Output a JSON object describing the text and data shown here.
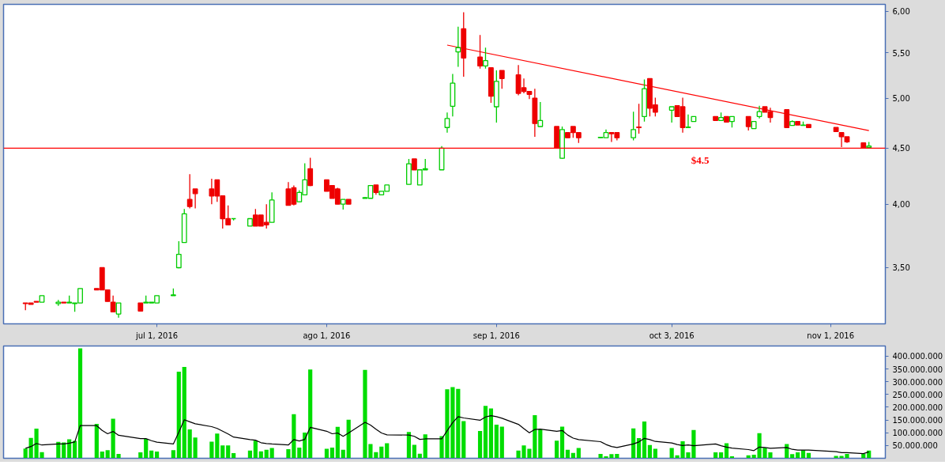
{
  "chart_data": [
    {
      "type": "candlestick",
      "log": true,
      "x": [
        "2016-06-07",
        "2016-06-08",
        "2016-06-09",
        "2016-06-10",
        "2016-06-13",
        "2016-06-14",
        "2016-06-15",
        "2016-06-16",
        "2016-06-17",
        "2016-06-20",
        "2016-06-21",
        "2016-06-22",
        "2016-06-23",
        "2016-06-24",
        "2016-06-28",
        "2016-06-29",
        "2016-06-30",
        "2016-07-01",
        "2016-07-04",
        "2016-07-05",
        "2016-07-06",
        "2016-07-07",
        "2016-07-08",
        "2016-07-11",
        "2016-07-12",
        "2016-07-13",
        "2016-07-14",
        "2016-07-15",
        "2016-07-18",
        "2016-07-19",
        "2016-07-20",
        "2016-07-21",
        "2016-07-22",
        "2016-07-25",
        "2016-07-26",
        "2016-07-27",
        "2016-07-28",
        "2016-07-29",
        "2016-08-01",
        "2016-08-02",
        "2016-08-03",
        "2016-08-04",
        "2016-08-05",
        "2016-08-08",
        "2016-08-09",
        "2016-08-10",
        "2016-08-11",
        "2016-08-12",
        "2016-08-16",
        "2016-08-17",
        "2016-08-18",
        "2016-08-19",
        "2016-08-22",
        "2016-08-23",
        "2016-08-24",
        "2016-08-25",
        "2016-08-26",
        "2016-08-29",
        "2016-08-30",
        "2016-08-31",
        "2016-09-01",
        "2016-09-02",
        "2016-09-05",
        "2016-09-06",
        "2016-09-07",
        "2016-09-08",
        "2016-09-09",
        "2016-09-12",
        "2016-09-13",
        "2016-09-14",
        "2016-09-15",
        "2016-09-16",
        "2016-09-20",
        "2016-09-21",
        "2016-09-22",
        "2016-09-23",
        "2016-09-26",
        "2016-09-27",
        "2016-09-28",
        "2016-09-29",
        "2016-09-30",
        "2016-10-03",
        "2016-10-04",
        "2016-10-05",
        "2016-10-06",
        "2016-10-07",
        "2016-10-11",
        "2016-10-12",
        "2016-10-13",
        "2016-10-14",
        "2016-10-17",
        "2016-10-18",
        "2016-10-19",
        "2016-10-20",
        "2016-10-21",
        "2016-10-24",
        "2016-10-25",
        "2016-10-26",
        "2016-10-27",
        "2016-10-28",
        "2016-11-02",
        "2016-11-03",
        "2016-11-04",
        "2016-11-07",
        "2016-11-08"
      ],
      "ohlc": [
        [
          3.25,
          3.25,
          3.2,
          3.245
        ],
        [
          3.25,
          3.25,
          3.24,
          3.24
        ],
        [
          3.26,
          3.26,
          3.255,
          3.255
        ],
        [
          3.255,
          3.3,
          3.255,
          3.3
        ],
        [
          3.245,
          3.27,
          3.23,
          3.255
        ],
        [
          3.255,
          3.255,
          3.25,
          3.25
        ],
        [
          3.25,
          3.3,
          3.25,
          3.255
        ],
        [
          3.245,
          3.25,
          3.19,
          3.25
        ],
        [
          3.25,
          3.35,
          3.25,
          3.35
        ],
        [
          3.35,
          3.35,
          3.34,
          3.34
        ],
        [
          3.5,
          3.5,
          3.34,
          3.34
        ],
        [
          3.34,
          3.34,
          3.26,
          3.26
        ],
        [
          3.255,
          3.3,
          3.19,
          3.19
        ],
        [
          3.175,
          3.25,
          3.15,
          3.25
        ],
        [
          3.25,
          3.25,
          3.195,
          3.195
        ],
        [
          3.25,
          3.3,
          3.25,
          3.255
        ],
        [
          3.25,
          3.255,
          3.25,
          3.255
        ],
        [
          3.25,
          3.3,
          3.25,
          3.3
        ],
        [
          3.3,
          3.35,
          3.3,
          3.305
        ],
        [
          3.5,
          3.7,
          3.495,
          3.6
        ],
        [
          3.69,
          3.96,
          3.69,
          3.92
        ],
        [
          4.04,
          4.26,
          3.965,
          3.98
        ],
        [
          4.13,
          4.13,
          3.965,
          4.09
        ],
        [
          4.13,
          4.22,
          4.0,
          4.07
        ],
        [
          4.21,
          4.21,
          4.02,
          4.07
        ],
        [
          4.07,
          4.07,
          3.8,
          3.88
        ],
        [
          3.88,
          3.99,
          3.83,
          3.83
        ],
        [
          3.88,
          3.88,
          3.865,
          3.88
        ],
        [
          3.82,
          3.88,
          3.82,
          3.88
        ],
        [
          3.91,
          3.96,
          3.82,
          3.82
        ],
        [
          3.91,
          3.91,
          3.82,
          3.82
        ],
        [
          3.85,
          4.0,
          3.8,
          3.83
        ],
        [
          3.85,
          4.1,
          3.85,
          4.035
        ],
        [
          4.13,
          4.19,
          3.99,
          3.99
        ],
        [
          4.14,
          4.16,
          3.99,
          4.0
        ],
        [
          4.02,
          4.12,
          4.02,
          4.1
        ],
        [
          4.08,
          4.36,
          4.08,
          4.21
        ],
        [
          4.31,
          4.41,
          4.155,
          4.16
        ],
        [
          4.21,
          4.21,
          4.11,
          4.11
        ],
        [
          4.16,
          4.16,
          4.05,
          4.05
        ],
        [
          4.13,
          4.14,
          4.0,
          4.0
        ],
        [
          4.0,
          4.04,
          3.955,
          4.04
        ],
        [
          4.04,
          4.04,
          4.0,
          4.0
        ],
        [
          4.05,
          4.06,
          4.05,
          4.055
        ],
        [
          4.05,
          4.16,
          4.05,
          4.16
        ],
        [
          4.165,
          4.165,
          4.08,
          4.1
        ],
        [
          4.08,
          4.11,
          4.08,
          4.11
        ],
        [
          4.11,
          4.165,
          4.11,
          4.165
        ],
        [
          4.17,
          4.4,
          4.17,
          4.355
        ],
        [
          4.4,
          4.4,
          4.3,
          4.3
        ],
        [
          4.165,
          4.3,
          4.165,
          4.3
        ],
        [
          4.3,
          4.4,
          4.3,
          4.31
        ],
        [
          4.3,
          4.52,
          4.3,
          4.5
        ],
        [
          4.7,
          4.85,
          4.65,
          4.79
        ],
        [
          4.915,
          5.26,
          4.81,
          5.16
        ],
        [
          5.51,
          5.81,
          5.34,
          5.56
        ],
        [
          5.785,
          5.99,
          5.23,
          5.44
        ],
        [
          5.45,
          5.71,
          5.32,
          5.35
        ],
        [
          5.35,
          5.56,
          5.32,
          5.41
        ],
        [
          5.33,
          5.33,
          4.95,
          5.02
        ],
        [
          4.91,
          5.3,
          4.75,
          5.18
        ],
        [
          5.3,
          5.3,
          5.1,
          5.21
        ],
        [
          5.25,
          5.36,
          5.03,
          5.05
        ],
        [
          5.11,
          5.21,
          5.05,
          5.07
        ],
        [
          5.07,
          5.07,
          4.99,
          5.04
        ],
        [
          5.0,
          5.1,
          4.61,
          4.74
        ],
        [
          4.71,
          4.96,
          4.71,
          4.77
        ],
        [
          4.71,
          4.71,
          4.5,
          4.5
        ],
        [
          4.405,
          4.71,
          4.4,
          4.68
        ],
        [
          4.65,
          4.65,
          4.6,
          4.6
        ],
        [
          4.71,
          4.71,
          4.6,
          4.65
        ],
        [
          4.65,
          4.65,
          4.55,
          4.6
        ],
        [
          4.6,
          4.605,
          4.6,
          4.605
        ],
        [
          4.6,
          4.68,
          4.6,
          4.65
        ],
        [
          4.65,
          4.65,
          4.56,
          4.64
        ],
        [
          4.65,
          4.65,
          4.575,
          4.6
        ],
        [
          4.6,
          4.86,
          4.575,
          4.68
        ],
        [
          4.705,
          4.94,
          4.64,
          4.7
        ],
        [
          4.81,
          5.2,
          4.76,
          5.1
        ],
        [
          5.21,
          5.21,
          4.81,
          4.895
        ],
        [
          4.93,
          5.005,
          4.81,
          4.855
        ],
        [
          4.875,
          4.91,
          4.75,
          4.91
        ],
        [
          4.92,
          4.92,
          4.81,
          4.81
        ],
        [
          4.91,
          5.005,
          4.65,
          4.7
        ],
        [
          4.7,
          4.83,
          4.7,
          4.705
        ],
        [
          4.76,
          4.81,
          4.76,
          4.81
        ],
        [
          4.81,
          4.81,
          4.77,
          4.77
        ],
        [
          4.77,
          4.85,
          4.77,
          4.8
        ],
        [
          4.81,
          4.81,
          4.755,
          4.755
        ],
        [
          4.76,
          4.81,
          4.7,
          4.81
        ],
        [
          4.81,
          4.81,
          4.67,
          4.71
        ],
        [
          4.69,
          4.76,
          4.69,
          4.76
        ],
        [
          4.81,
          4.92,
          4.79,
          4.86
        ],
        [
          4.91,
          4.91,
          4.855,
          4.855
        ],
        [
          4.86,
          4.9,
          4.75,
          4.8
        ],
        [
          4.88,
          4.88,
          4.7,
          4.7
        ],
        [
          4.72,
          4.77,
          4.72,
          4.76
        ],
        [
          4.76,
          4.76,
          4.725,
          4.725
        ],
        [
          4.72,
          4.76,
          4.72,
          4.725
        ],
        [
          4.73,
          4.73,
          4.7,
          4.7
        ],
        [
          4.7,
          4.7,
          4.66,
          4.66
        ],
        [
          4.65,
          4.65,
          4.51,
          4.61
        ],
        [
          4.61,
          4.61,
          4.55,
          4.56
        ],
        [
          4.55,
          4.55,
          4.5,
          4.5
        ],
        [
          4.505,
          4.56,
          4.505,
          4.52
        ]
      ],
      "colors": [
        "#ee0000",
        "#ee0000",
        "#ee0000",
        "#00cc00",
        "#00cc00",
        "#ee0000",
        "#00cc00",
        "#00cc00",
        "#00cc00",
        "#ee0000",
        "#ee0000",
        "#ee0000",
        "#ee0000",
        "#00cc00",
        "#ee0000",
        "#00cc00",
        "#00cc00",
        "#00cc00",
        "#00cc00",
        "#00cc00",
        "#00cc00",
        "#ee0000",
        "#ee0000",
        "#ee0000",
        "#ee0000",
        "#ee0000",
        "#ee0000",
        "#00cc00",
        "#00cc00",
        "#ee0000",
        "#ee0000",
        "#ee0000",
        "#00cc00",
        "#ee0000",
        "#ee0000",
        "#00cc00",
        "#00cc00",
        "#ee0000",
        "#ee0000",
        "#ee0000",
        "#ee0000",
        "#00cc00",
        "#ee0000",
        "#00cc00",
        "#00cc00",
        "#ee0000",
        "#00cc00",
        "#00cc00",
        "#00cc00",
        "#ee0000",
        "#00cc00",
        "#00cc00",
        "#00cc00",
        "#00cc00",
        "#00cc00",
        "#00cc00",
        "#ee0000",
        "#ee0000",
        "#00cc00",
        "#ee0000",
        "#00cc00",
        "#ee0000",
        "#ee0000",
        "#ee0000",
        "#ee0000",
        "#ee0000",
        "#00cc00",
        "#ee0000",
        "#00cc00",
        "#ee0000",
        "#ee0000",
        "#ee0000",
        "#00cc00",
        "#00cc00",
        "#ee0000",
        "#ee0000",
        "#00cc00",
        "#ee0000",
        "#00cc00",
        "#ee0000",
        "#ee0000",
        "#00cc00",
        "#ee0000",
        "#ee0000",
        "#00cc00",
        "#00cc00",
        "#ee0000",
        "#00cc00",
        "#ee0000",
        "#00cc00",
        "#ee0000",
        "#00cc00",
        "#00cc00",
        "#ee0000",
        "#ee0000",
        "#ee0000",
        "#00cc00",
        "#ee0000",
        "#00cc00",
        "#ee0000",
        "#ee0000",
        "#ee0000",
        "#ee0000",
        "#ee0000",
        "#00cc00"
      ],
      "series": [
        {
          "type": "line",
          "x": [
            "2016-08-23",
            "2016-11-08"
          ],
          "values": [
            5.59,
            4.67
          ],
          "color": "#ff0000"
        }
      ],
      "ref_lines": [
        {
          "axis": "y",
          "value": 4.5,
          "label": "$4.5",
          "color": "#ff0000"
        }
      ],
      "xlim": [
        "2016-06-03",
        "2016-11-11"
      ],
      "xticks": [
        {
          "value": "2016-07-01",
          "label": "jul 1, 2016"
        },
        {
          "value": "2016-08-01",
          "label": "ago 1, 2016"
        },
        {
          "value": "2016-09-01",
          "label": "sep 1, 2016"
        },
        {
          "value": "2016-10-03",
          "label": "oct 3, 2016"
        },
        {
          "value": "2016-11-01",
          "label": "nov 1, 2016"
        }
      ],
      "ylim": [
        3.11,
        6.09
      ],
      "yticks": [
        {
          "value": 3.5,
          "label": "3,50"
        },
        {
          "value": 4,
          "label": "4,00"
        },
        {
          "value": 4.5,
          "label": "4,50"
        },
        {
          "value": 5,
          "label": "5,00"
        },
        {
          "value": 5.5,
          "label": "5,50"
        },
        {
          "value": 6,
          "label": "6,00"
        }
      ]
    },
    {
      "type": "bar",
      "tick_labels": "y",
      "x": [
        "2016-06-07",
        "2016-06-08",
        "2016-06-09",
        "2016-06-10",
        "2016-06-13",
        "2016-06-14",
        "2016-06-15",
        "2016-06-16",
        "2016-06-17",
        "2016-06-20",
        "2016-06-21",
        "2016-06-22",
        "2016-06-23",
        "2016-06-24",
        "2016-06-28",
        "2016-06-29",
        "2016-06-30",
        "2016-07-01",
        "2016-07-04",
        "2016-07-05",
        "2016-07-06",
        "2016-07-07",
        "2016-07-08",
        "2016-07-11",
        "2016-07-12",
        "2016-07-13",
        "2016-07-14",
        "2016-07-15",
        "2016-07-18",
        "2016-07-19",
        "2016-07-20",
        "2016-07-21",
        "2016-07-22",
        "2016-07-25",
        "2016-07-26",
        "2016-07-27",
        "2016-07-28",
        "2016-07-29",
        "2016-08-01",
        "2016-08-02",
        "2016-08-03",
        "2016-08-04",
        "2016-08-05",
        "2016-08-08",
        "2016-08-09",
        "2016-08-10",
        "2016-08-11",
        "2016-08-12",
        "2016-08-16",
        "2016-08-17",
        "2016-08-18",
        "2016-08-19",
        "2016-08-22",
        "2016-08-23",
        "2016-08-24",
        "2016-08-25",
        "2016-08-26",
        "2016-08-29",
        "2016-08-30",
        "2016-08-31",
        "2016-09-01",
        "2016-09-02",
        "2016-09-05",
        "2016-09-06",
        "2016-09-07",
        "2016-09-08",
        "2016-09-09",
        "2016-09-12",
        "2016-09-13",
        "2016-09-14",
        "2016-09-15",
        "2016-09-16",
        "2016-09-20",
        "2016-09-21",
        "2016-09-22",
        "2016-09-23",
        "2016-09-26",
        "2016-09-27",
        "2016-09-28",
        "2016-09-29",
        "2016-09-30",
        "2016-10-03",
        "2016-10-04",
        "2016-10-05",
        "2016-10-06",
        "2016-10-07",
        "2016-10-11",
        "2016-10-12",
        "2016-10-13",
        "2016-10-14",
        "2016-10-17",
        "2016-10-18",
        "2016-10-19",
        "2016-10-20",
        "2016-10-21",
        "2016-10-24",
        "2016-10-25",
        "2016-10-26",
        "2016-10-27",
        "2016-10-28",
        "2016-11-02",
        "2016-11-03",
        "2016-11-04",
        "2016-11-07",
        "2016-11-08"
      ],
      "series": [
        {
          "type": "bar",
          "color": "#00dd00",
          "values": [
            38000000,
            80000000,
            116000000,
            24000000,
            64000000,
            62000000,
            74000000,
            68000000,
            431000000,
            135000000,
            26000000,
            32000000,
            155000000,
            17000000,
            23000000,
            76000000,
            30000000,
            26000000,
            32000000,
            339000000,
            358000000,
            113000000,
            81000000,
            65000000,
            97000000,
            50000000,
            50000000,
            20000000,
            30000000,
            69000000,
            27000000,
            33000000,
            40000000,
            36000000,
            173000000,
            42000000,
            101000000,
            348000000,
            37000000,
            42000000,
            123000000,
            33000000,
            151000000,
            346000000,
            56000000,
            24000000,
            46000000,
            59000000,
            103000000,
            53000000,
            18000000,
            94000000,
            87000000,
            270000000,
            279000000,
            272000000,
            146000000,
            107000000,
            205000000,
            195000000,
            132000000,
            124000000,
            30000000,
            50000000,
            37000000,
            169000000,
            113000000,
            69000000,
            124000000,
            33000000,
            21000000,
            40000000,
            17000000,
            8000000,
            16000000,
            17000000,
            117000000,
            79000000,
            144000000,
            52000000,
            37000000,
            40000000,
            12000000,
            67000000,
            23000000,
            111000000,
            23000000,
            23000000,
            59000000,
            8000000,
            12000000,
            14000000,
            98000000,
            41000000,
            23000000,
            56000000,
            16000000,
            23000000,
            32000000,
            21000000,
            9000000,
            9000000,
            17000000,
            17000000,
            30000000
          ]
        },
        {
          "type": "line",
          "color": "#000000",
          "values": [
            39000000,
            46000000,
            58000000,
            52000000,
            56000000,
            56000000,
            59000000,
            64000000,
            128000000,
            128000000,
            109000000,
            96000000,
            105000000,
            90000000,
            77000000,
            77000000,
            69000000,
            63000000,
            56000000,
            102000000,
            151000000,
            143000000,
            135000000,
            124000000,
            117000000,
            106000000,
            95000000,
            83000000,
            73000000,
            71000000,
            61000000,
            58000000,
            56000000,
            52000000,
            73000000,
            68000000,
            74000000,
            121000000,
            106000000,
            96000000,
            99000000,
            86000000,
            99000000,
            141000000,
            130000000,
            114000000,
            99000000,
            92000000,
            91000000,
            86000000,
            74000000,
            76000000,
            76000000,
            108000000,
            140000000,
            163000000,
            158000000,
            149000000,
            162000000,
            167000000,
            163000000,
            157000000,
            133000000,
            116000000,
            100000000,
            113000000,
            114000000,
            106000000,
            109000000,
            91000000,
            79000000,
            73000000,
            65000000,
            54000000,
            46000000,
            42000000,
            56000000,
            64000000,
            78000000,
            73000000,
            66000000,
            60000000,
            54000000,
            50000000,
            52000000,
            49000000,
            56000000,
            49000000,
            44000000,
            40000000,
            34000000,
            30000000,
            44000000,
            42000000,
            39000000,
            42000000,
            35000000,
            32000000,
            32000000,
            32000000,
            26000000,
            22000000,
            22000000,
            18000000,
            25000000
          ]
        }
      ],
      "xlim": [
        "2016-06-03",
        "2016-11-11"
      ],
      "ylim": [
        0,
        440000000
      ],
      "yticks": [
        {
          "value": 50000000,
          "label": "50.000.000"
        },
        {
          "value": 100000000,
          "label": "100.000.000"
        },
        {
          "value": 150000000,
          "label": "150.000.000"
        },
        {
          "value": 200000000,
          "label": "200.000.000"
        },
        {
          "value": 250000000,
          "label": "250.000.000"
        },
        {
          "value": 300000000,
          "label": "300.000.000"
        },
        {
          "value": 350000000,
          "label": "350.000.000"
        },
        {
          "value": 400000000,
          "label": "400.000.000"
        }
      ]
    }
  ]
}
